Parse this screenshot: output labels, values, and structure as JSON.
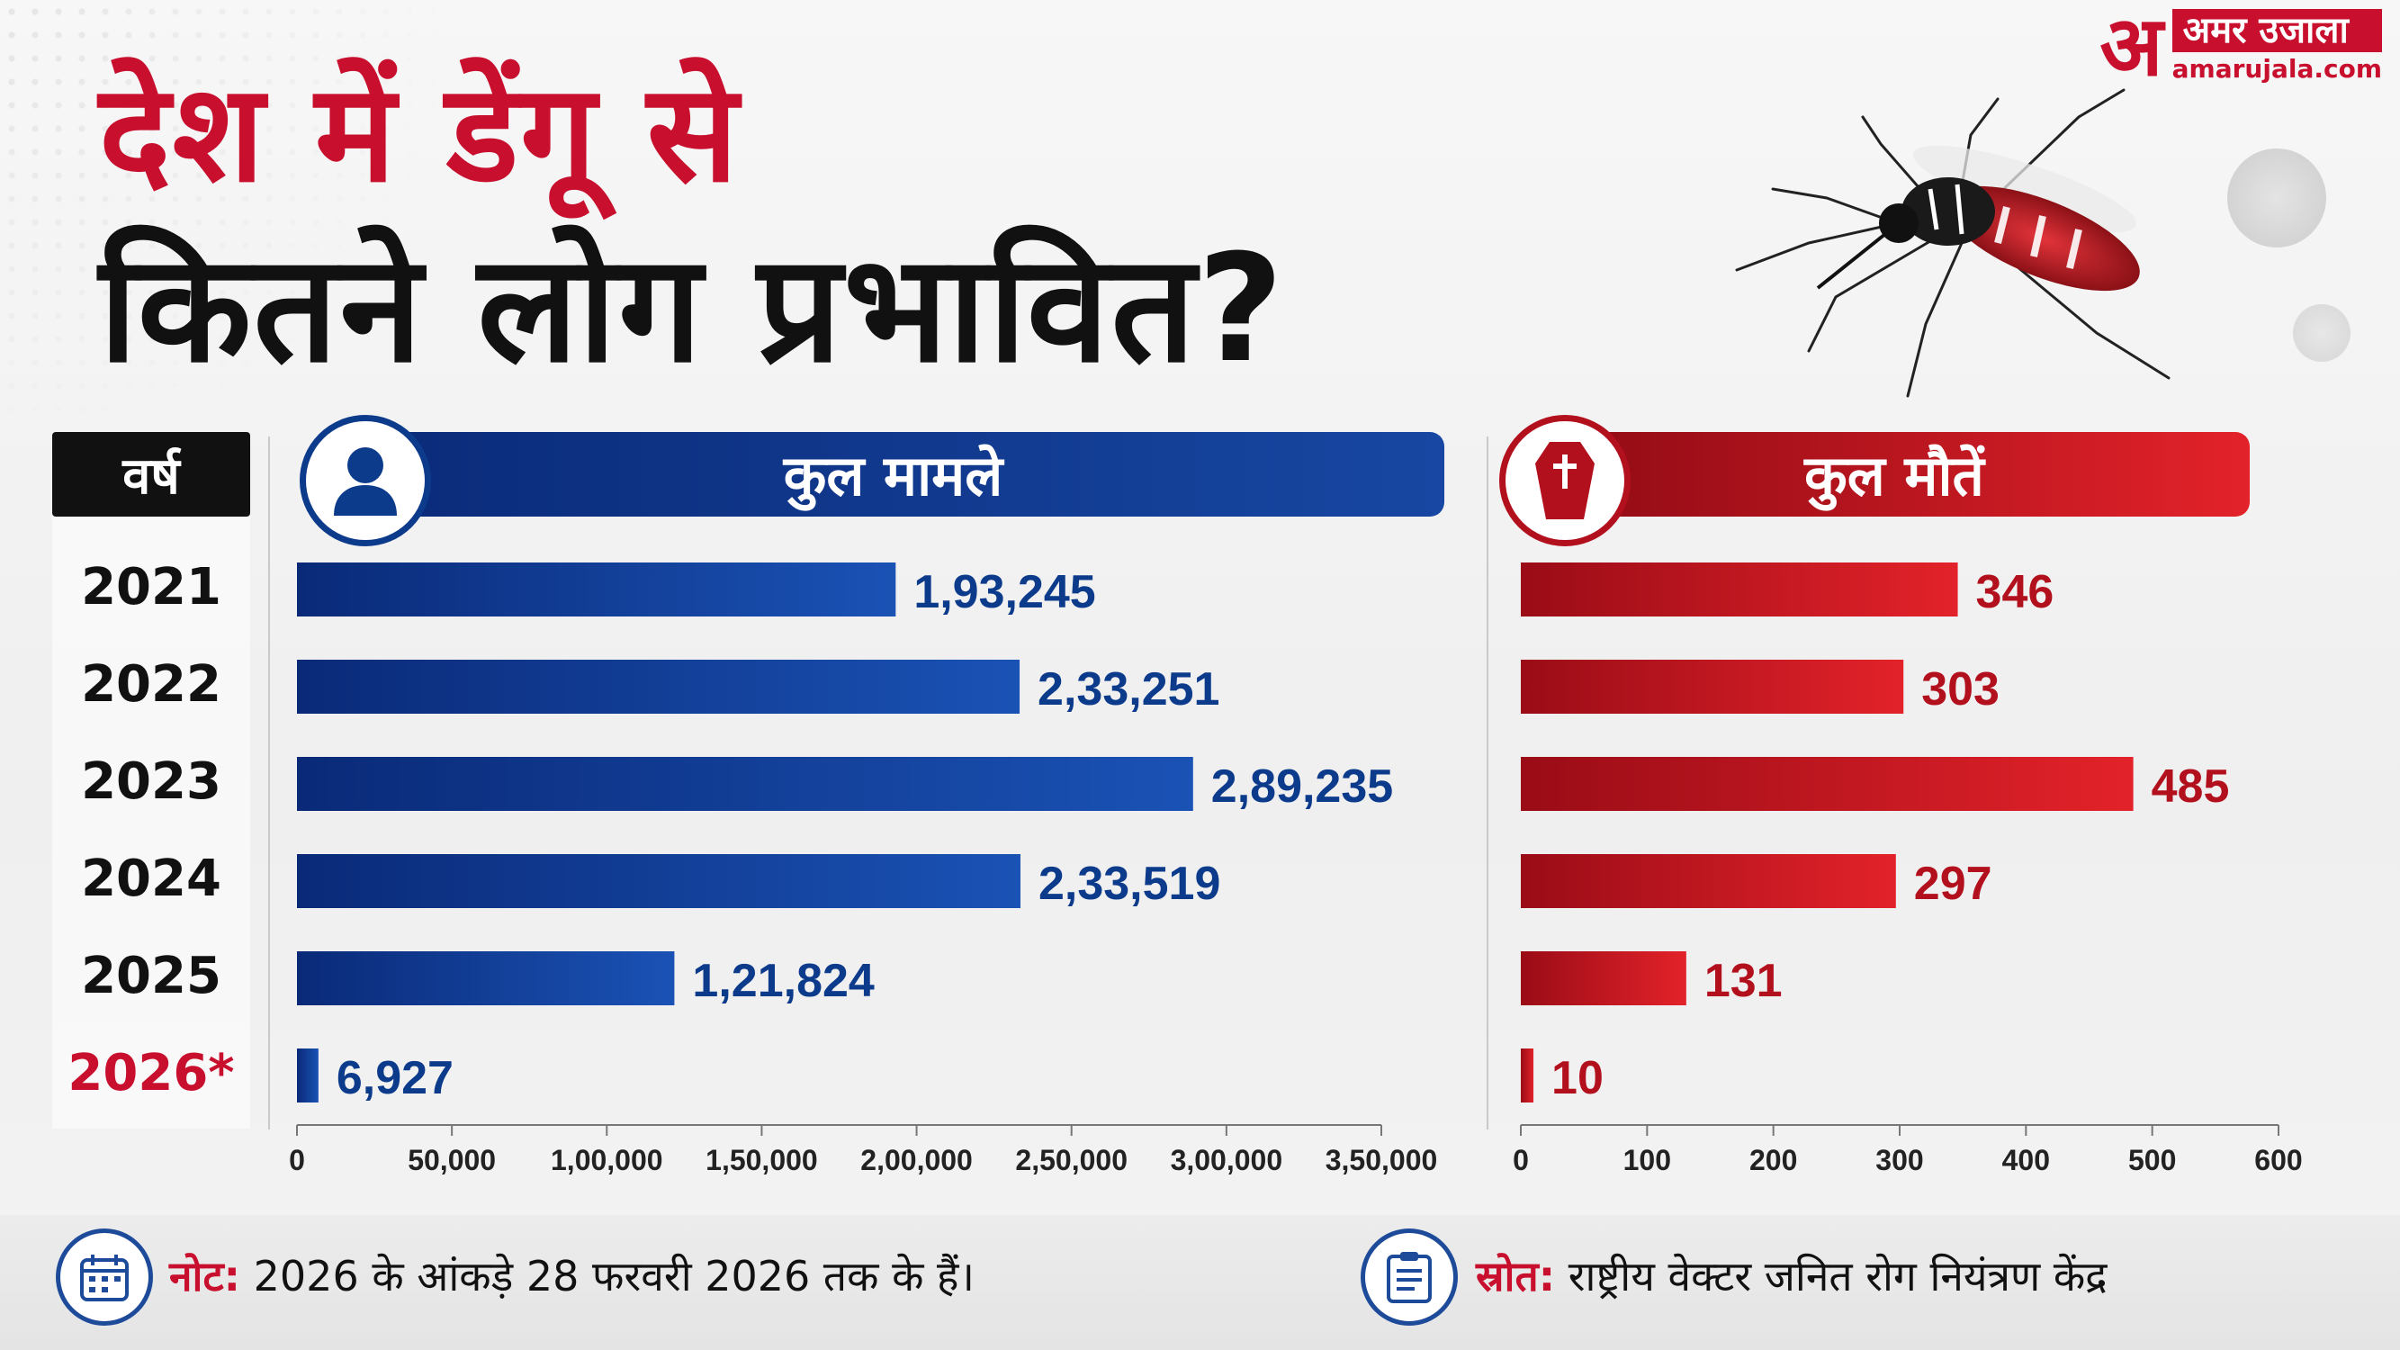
{
  "title": {
    "line1": "देश में डेंगू से",
    "line2": "कितने लोग प्रभावित?"
  },
  "brand": {
    "mark": "अ",
    "name": "अमर उजाला",
    "url": "amarujala.com"
  },
  "headers": {
    "year": "वर्ष",
    "cases": "कुल मामले",
    "deaths": "कुल मौतें"
  },
  "colors": {
    "cases": "#0d3b8c",
    "deaths": "#c8102e",
    "highlight_year": "#c8102e"
  },
  "icons": {
    "cases_badge": "person-icon",
    "deaths_badge": "coffin-icon",
    "note": "calendar-icon",
    "source": "clipboard-icon"
  },
  "years": [
    "2021",
    "2022",
    "2023",
    "2024",
    "2025",
    "2026*"
  ],
  "chart_data": [
    {
      "type": "bar",
      "orientation": "horizontal",
      "title": "कुल मामले",
      "categories": [
        "2021",
        "2022",
        "2023",
        "2024",
        "2025",
        "2026*"
      ],
      "values": [
        193245,
        233251,
        289235,
        233519,
        121824,
        6927
      ],
      "value_labels": [
        "1,93,245",
        "2,33,251",
        "2,89,235",
        "2,33,519",
        "1,21,824",
        "6,927"
      ],
      "xlim": [
        0,
        350000
      ],
      "ticks": [
        0,
        50000,
        100000,
        150000,
        200000,
        250000,
        300000,
        350000
      ],
      "tick_labels": [
        "0",
        "50,000",
        "1,00,000",
        "1,50,000",
        "2,00,000",
        "2,50,000",
        "3,00,000",
        "3,50,000"
      ],
      "color": "#0d3b8c"
    },
    {
      "type": "bar",
      "orientation": "horizontal",
      "title": "कुल मौतें",
      "categories": [
        "2021",
        "2022",
        "2023",
        "2024",
        "2025",
        "2026*"
      ],
      "values": [
        346,
        303,
        485,
        297,
        131,
        10
      ],
      "value_labels": [
        "346",
        "303",
        "485",
        "297",
        "131",
        "10"
      ],
      "xlim": [
        0,
        600
      ],
      "ticks": [
        0,
        100,
        200,
        300,
        400,
        500,
        600
      ],
      "tick_labels": [
        "0",
        "100",
        "200",
        "300",
        "400",
        "500",
        "600"
      ],
      "color": "#c8102e"
    }
  ],
  "footer": {
    "note_label": "नोट:",
    "note_text": " 2026 के आंकड़े 28 फरवरी 2026 तक के हैं।",
    "source_label": "स्रोत:",
    "source_text": " राष्ट्रीय वेक्टर जनित रोग नियंत्रण केंद्र"
  }
}
